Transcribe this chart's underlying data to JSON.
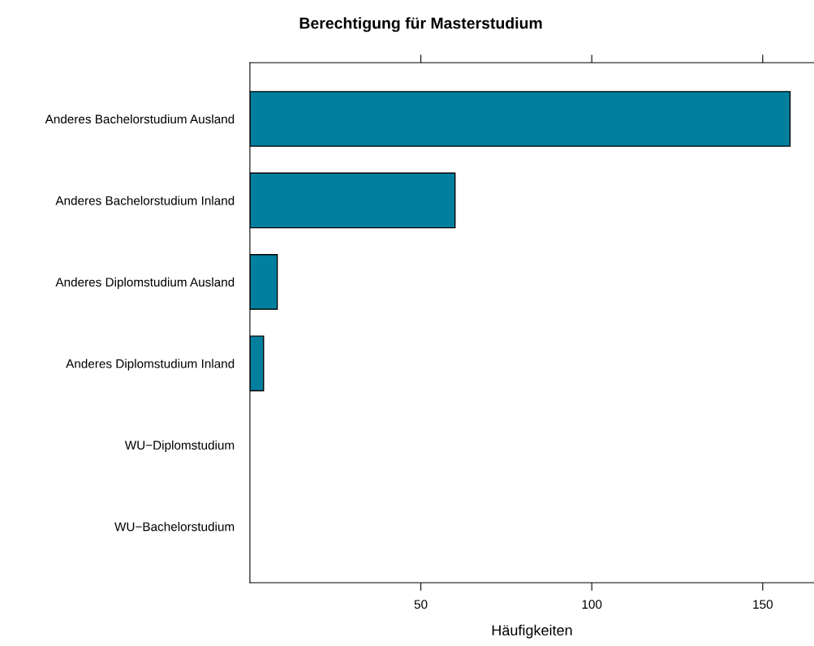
{
  "chart_data": {
    "type": "bar",
    "orientation": "horizontal",
    "title": "Berechtigung für Masterstudium",
    "xlabel": "Häufigkeiten",
    "categories": [
      "Anderes Bachelorstudium Ausland",
      "Anderes Bachelorstudium Inland",
      "Anderes Diplomstudium Ausland",
      "Anderes Diplomstudium Inland",
      "WU−Diplomstudium",
      "WU−Bachelorstudium"
    ],
    "values": [
      158,
      60,
      8,
      4,
      0,
      0
    ],
    "color": "#00809e",
    "xlim": [
      0,
      165
    ],
    "xticks": [
      50,
      100,
      150
    ],
    "grid": false,
    "legend": false
  }
}
